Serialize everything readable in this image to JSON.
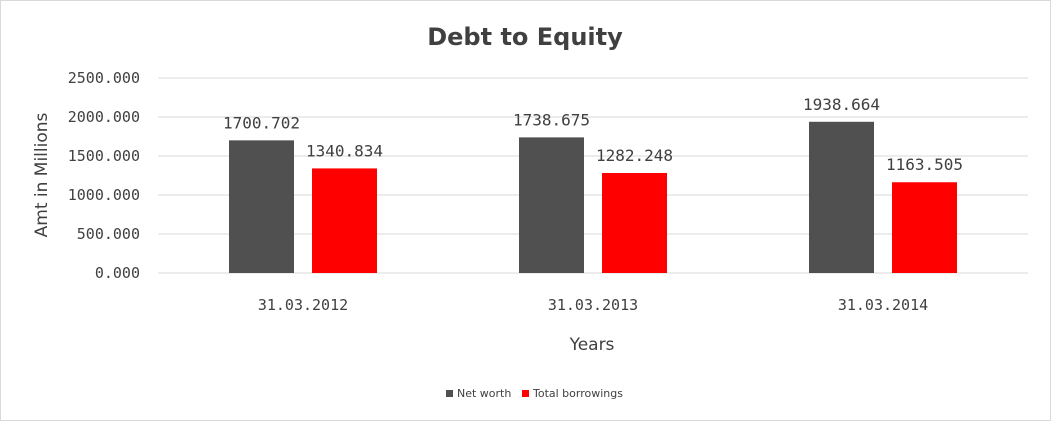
{
  "chart_data": {
    "type": "bar",
    "title": "Debt to Equity",
    "xlabel": "Years",
    "ylabel": "Amt in Millions",
    "categories": [
      "31.03.2012",
      "31.03.2013",
      "31.03.2014"
    ],
    "series": [
      {
        "name": "Net worth",
        "values": [
          1700.702,
          1738.675,
          1938.664
        ],
        "color": "#505050"
      },
      {
        "name": "Total borrowings",
        "values": [
          1340.834,
          1282.248,
          1163.505
        ],
        "color": "#ff0000"
      }
    ],
    "value_labels": [
      [
        "1700.702",
        "1738.675",
        "1938.664"
      ],
      [
        "1340.834",
        "1282.248",
        "1163.505"
      ]
    ],
    "ylim": [
      0,
      2500
    ],
    "yticks": [
      "0.000",
      "500.000",
      "1000.000",
      "1500.000",
      "2000.000",
      "2500.000"
    ],
    "grid": true,
    "legend_position": "bottom",
    "gridline_color": "#d9d9d9"
  }
}
